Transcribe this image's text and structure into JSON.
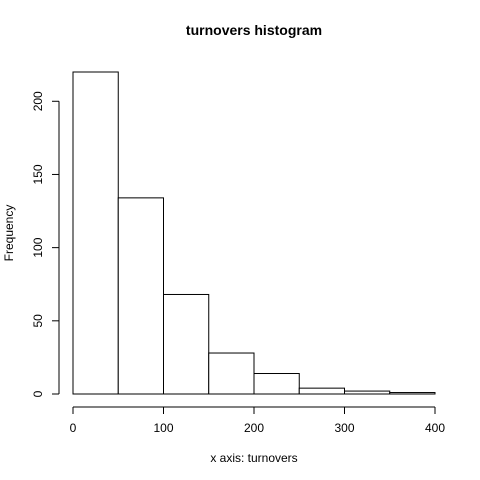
{
  "chart_data": {
    "type": "bar",
    "title": "turnovers histogram",
    "xlabel": "x axis: turnovers",
    "ylabel": "Frequency",
    "bins": [
      {
        "start": 0,
        "end": 50,
        "value": 220
      },
      {
        "start": 50,
        "end": 100,
        "value": 134
      },
      {
        "start": 100,
        "end": 150,
        "value": 68
      },
      {
        "start": 150,
        "end": 200,
        "value": 28
      },
      {
        "start": 200,
        "end": 250,
        "value": 14
      },
      {
        "start": 250,
        "end": 300,
        "value": 4
      },
      {
        "start": 300,
        "end": 350,
        "value": 2
      },
      {
        "start": 350,
        "end": 400,
        "value": 1
      }
    ],
    "xlim": [
      0,
      400
    ],
    "ylim": [
      0,
      220
    ],
    "x_ticks": [
      0,
      100,
      200,
      300,
      400
    ],
    "y_ticks": [
      0,
      50,
      100,
      150,
      200
    ],
    "grid": false,
    "bar_fill": "#ffffff",
    "bar_stroke": "#000000"
  }
}
